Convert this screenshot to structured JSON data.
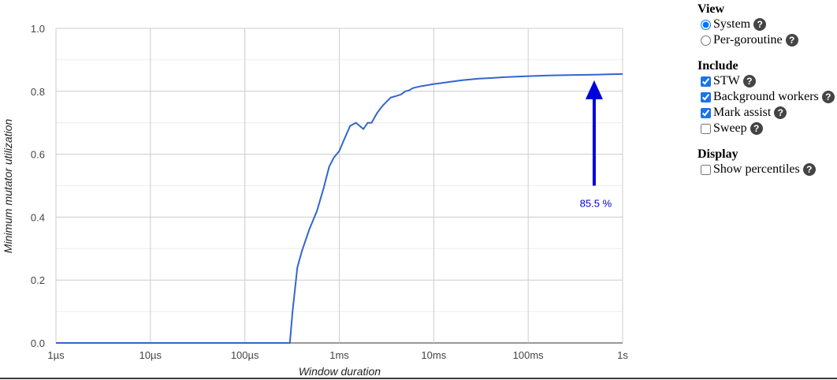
{
  "chart_data": {
    "type": "line",
    "xlabel": "Window duration",
    "ylabel": "Minimum mutator utilization",
    "x_scale": "log",
    "x_ticks": [
      "1µs",
      "10µs",
      "100µs",
      "1ms",
      "10ms",
      "100ms",
      "1s"
    ],
    "y_ticks": [
      "0.0",
      "0.2",
      "0.4",
      "0.6",
      "0.8",
      "1.0"
    ],
    "ylim": [
      0,
      1
    ],
    "grid": true,
    "line_color": "#3366cc",
    "series": [
      {
        "x_seconds": [
          1e-06,
          0.00028,
          0.0003,
          0.00032,
          0.00036,
          0.0004,
          0.00048,
          0.00058,
          0.00068,
          0.00078,
          0.00088,
          0.001,
          0.0011,
          0.0013,
          0.0015,
          0.0018,
          0.002,
          0.0022,
          0.0025,
          0.0028,
          0.003,
          0.0035,
          0.004,
          0.0045,
          0.005,
          0.0055,
          0.006,
          0.007,
          0.008,
          0.01,
          0.012,
          0.015,
          0.02,
          0.025,
          0.03,
          0.04,
          0.05,
          0.07,
          0.1,
          0.15,
          0.2,
          0.3,
          0.5,
          0.7,
          1.0
        ],
        "y": [
          0.0,
          0.0,
          0.0,
          0.1,
          0.24,
          0.29,
          0.36,
          0.42,
          0.49,
          0.56,
          0.59,
          0.61,
          0.64,
          0.69,
          0.7,
          0.68,
          0.7,
          0.7,
          0.73,
          0.75,
          0.76,
          0.78,
          0.785,
          0.79,
          0.8,
          0.803,
          0.81,
          0.815,
          0.818,
          0.823,
          0.826,
          0.83,
          0.835,
          0.838,
          0.84,
          0.842,
          0.844,
          0.846,
          0.848,
          0.85,
          0.851,
          0.852,
          0.853,
          0.854,
          0.855
        ]
      }
    ],
    "annotation": {
      "text": "85.5 %",
      "x_seconds": 0.5,
      "y": 0.855,
      "color": "#0000dd"
    }
  },
  "controls": {
    "view": {
      "title": "View",
      "options": [
        {
          "label": "System",
          "checked": true
        },
        {
          "label": "Per-goroutine",
          "checked": false
        }
      ]
    },
    "include": {
      "title": "Include",
      "options": [
        {
          "label": "STW",
          "checked": true
        },
        {
          "label": "Background workers",
          "checked": true
        },
        {
          "label": "Mark assist",
          "checked": true
        },
        {
          "label": "Sweep",
          "checked": false
        }
      ]
    },
    "display": {
      "title": "Display",
      "options": [
        {
          "label": "Show percentiles",
          "checked": false
        }
      ]
    },
    "help_glyph": "?"
  }
}
